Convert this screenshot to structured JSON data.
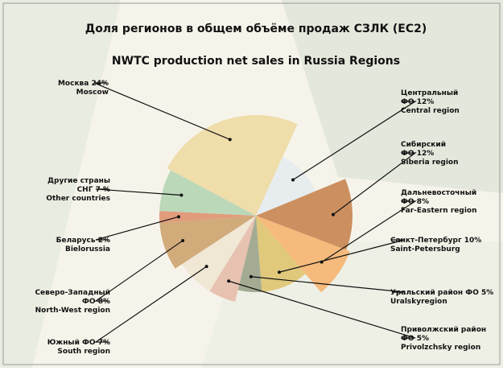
{
  "chart_data": {
    "type": "pie",
    "title": "Доля регионов в общем объёме продаж СЗЛК (ЕС2)",
    "subtitle": "NWTC production net sales in Russia Regions",
    "labels": [
      [
        "Москва 24%",
        "Moscow"
      ],
      [
        "Центральный",
        "ФО 12%",
        "Central region"
      ],
      [
        "Сибирский",
        "ФО 12%",
        "Siberia region"
      ],
      [
        "Дальневосточный",
        "ФО 8%",
        "Far-Eastern region"
      ],
      [
        "Санкт-Петербург 10%",
        "Saint-Petersburg"
      ],
      [
        "Уральский район ФО 5%",
        "Uralskyregion"
      ],
      [
        "Приволжский район",
        "ФО 5%",
        "Privolzchsky region"
      ],
      [
        "Южный ФО 7%",
        "South region"
      ],
      [
        "Северо-Западный",
        "ФО 8%",
        "North-West region"
      ],
      [
        "Беларусь 2%",
        "Bielorussia"
      ],
      [
        "Другие страны",
        "СНГ 7 %",
        "Other countries"
      ]
    ],
    "values": [
      24,
      12,
      12,
      8,
      10,
      5,
      5,
      7,
      8,
      2,
      7
    ],
    "colors": [
      "#eedba6",
      "#e6ecef",
      "#c98a58",
      "#f4b676",
      "#dfc676",
      "#9fa78e",
      "#e6bfae",
      "#efe6d4",
      "#cfa674",
      "#df9776",
      "#b7d6b6"
    ]
  }
}
